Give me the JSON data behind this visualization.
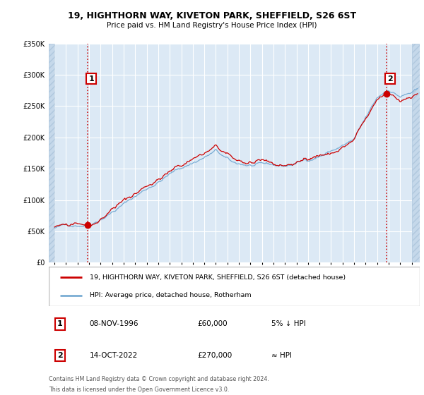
{
  "title": "19, HIGHTHORN WAY, KIVETON PARK, SHEFFIELD, S26 6ST",
  "subtitle": "Price paid vs. HM Land Registry's House Price Index (HPI)",
  "legend_line1": "19, HIGHTHORN WAY, KIVETON PARK, SHEFFIELD, S26 6ST (detached house)",
  "legend_line2": "HPI: Average price, detached house, Rotherham",
  "annotation1_date": "08-NOV-1996",
  "annotation1_price": "£60,000",
  "annotation1_hpi": "5% ↓ HPI",
  "annotation2_date": "14-OCT-2022",
  "annotation2_price": "£270,000",
  "annotation2_hpi": "≈ HPI",
  "footnote1": "Contains HM Land Registry data © Crown copyright and database right 2024.",
  "footnote2": "This data is licensed under the Open Government Licence v3.0.",
  "price_paid_color": "#cc0000",
  "hpi_color": "#7aadd4",
  "background_plot": "#dce9f5",
  "background_hatch_color": "#c5d8ea",
  "grid_color": "#ffffff",
  "annotation_box_color": "#cc0000",
  "dashed_line_color": "#cc0000",
  "ylim": [
    0,
    350000
  ],
  "yticks": [
    0,
    50000,
    100000,
    150000,
    200000,
    250000,
    300000,
    350000
  ],
  "sale1_year": 1996.85,
  "sale1_value": 60000,
  "sale2_year": 2022.79,
  "sale2_value": 270000,
  "xmin": 1993.5,
  "xmax": 2025.7
}
